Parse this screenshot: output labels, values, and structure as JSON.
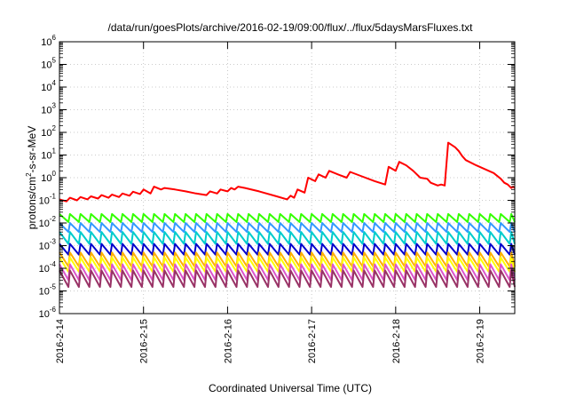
{
  "chart_data": {
    "type": "line",
    "title": "/data/run/goesPlots/archive/2016-02-19/09:00/flux/../flux/5daysMarsFluxes.txt",
    "xlabel": "Coordinated Universal Time (UTC)",
    "ylabel_base": "protons/cm",
    "ylabel_sup": "2",
    "ylabel_rest": "-s-sr-MeV",
    "x_scale": "date",
    "x_range": [
      "2016-02-14T00:00",
      "2016-02-19T10:00"
    ],
    "x_ticks": [
      "2016-2-14",
      "2016-2-15",
      "2016-2-16",
      "2016-2-17",
      "2016-2-18",
      "2016-2-19"
    ],
    "y_scale": "log",
    "y_range": [
      1e-06,
      1000000.0
    ],
    "y_tick_exponents": [
      -6,
      -5,
      -4,
      -3,
      -2,
      -1,
      0,
      1,
      2,
      3,
      4,
      5,
      6
    ],
    "grid": true,
    "legend": "none",
    "sawtooth_period_hours": 3,
    "series": [
      {
        "color": "#ff0000",
        "points": [
          [
            "2016-02-14T00:00",
            0.11
          ],
          [
            "2016-02-14T02:00",
            0.09
          ],
          [
            "2016-02-14T03:00",
            0.13
          ],
          [
            "2016-02-14T05:00",
            0.1
          ],
          [
            "2016-02-14T06:00",
            0.14
          ],
          [
            "2016-02-14T08:00",
            0.11
          ],
          [
            "2016-02-14T09:00",
            0.15
          ],
          [
            "2016-02-14T11:00",
            0.12
          ],
          [
            "2016-02-14T12:00",
            0.17
          ],
          [
            "2016-02-14T14:00",
            0.13
          ],
          [
            "2016-02-14T15:00",
            0.18
          ],
          [
            "2016-02-14T17:00",
            0.14
          ],
          [
            "2016-02-14T18:00",
            0.2
          ],
          [
            "2016-02-14T20:00",
            0.16
          ],
          [
            "2016-02-14T21:00",
            0.24
          ],
          [
            "2016-02-14T23:00",
            0.19
          ],
          [
            "2016-02-15T00:00",
            0.3
          ],
          [
            "2016-02-15T02:00",
            0.2
          ],
          [
            "2016-02-15T03:00",
            0.4
          ],
          [
            "2016-02-15T05:00",
            0.3
          ],
          [
            "2016-02-15T06:00",
            0.35
          ],
          [
            "2016-02-15T09:00",
            0.3
          ],
          [
            "2016-02-15T12:00",
            0.25
          ],
          [
            "2016-02-15T15:00",
            0.2
          ],
          [
            "2016-02-15T18:00",
            0.17
          ],
          [
            "2016-02-15T19:00",
            0.25
          ],
          [
            "2016-02-15T21:00",
            0.2
          ],
          [
            "2016-02-15T22:00",
            0.3
          ],
          [
            "2016-02-16T00:00",
            0.25
          ],
          [
            "2016-02-16T01:00",
            0.35
          ],
          [
            "2016-02-16T02:00",
            0.3
          ],
          [
            "2016-02-16T03:00",
            0.4
          ],
          [
            "2016-02-16T05:00",
            0.35
          ],
          [
            "2016-02-16T09:00",
            0.25
          ],
          [
            "2016-02-16T14:00",
            0.15
          ],
          [
            "2016-02-16T17:00",
            0.11
          ],
          [
            "2016-02-16T18:00",
            0.16
          ],
          [
            "2016-02-16T19:00",
            0.13
          ],
          [
            "2016-02-16T20:00",
            0.3
          ],
          [
            "2016-02-16T22:00",
            0.22
          ],
          [
            "2016-02-16T23:00",
            1.0
          ],
          [
            "2016-02-17T01:00",
            0.7
          ],
          [
            "2016-02-17T02:00",
            1.4
          ],
          [
            "2016-02-17T04:00",
            1.0
          ],
          [
            "2016-02-17T05:00",
            2.0
          ],
          [
            "2016-02-17T08:00",
            1.3
          ],
          [
            "2016-02-17T10:00",
            1.0
          ],
          [
            "2016-02-17T11:00",
            1.8
          ],
          [
            "2016-02-17T14:00",
            1.2
          ],
          [
            "2016-02-17T18:00",
            0.7
          ],
          [
            "2016-02-17T21:00",
            0.5
          ],
          [
            "2016-02-17T22:00",
            3.0
          ],
          [
            "2016-02-18T00:00",
            2.0
          ],
          [
            "2016-02-18T01:00",
            5.0
          ],
          [
            "2016-02-18T03:00",
            3.5
          ],
          [
            "2016-02-18T05:00",
            2.0
          ],
          [
            "2016-02-18T07:00",
            1.0
          ],
          [
            "2016-02-18T09:00",
            0.9
          ],
          [
            "2016-02-18T10:00",
            0.6
          ],
          [
            "2016-02-18T12:00",
            0.45
          ],
          [
            "2016-02-18T13:00",
            0.5
          ],
          [
            "2016-02-18T14:00",
            0.45
          ],
          [
            "2016-02-18T15:00",
            35.0
          ],
          [
            "2016-02-18T17:00",
            22.0
          ],
          [
            "2016-02-18T18:00",
            15.0
          ],
          [
            "2016-02-18T19:00",
            9.0
          ],
          [
            "2016-02-18T20:00",
            6.0
          ],
          [
            "2016-02-18T23:00",
            3.5
          ],
          [
            "2016-02-19T02:00",
            2.2
          ],
          [
            "2016-02-19T04:00",
            1.6
          ],
          [
            "2016-02-19T06:00",
            0.9
          ],
          [
            "2016-02-19T07:00",
            0.6
          ],
          [
            "2016-02-19T08:00",
            0.5
          ],
          [
            "2016-02-19T09:00",
            0.35
          ],
          [
            "2016-02-19T09:30",
            0.4
          ],
          [
            "2016-02-19T10:00",
            0.35
          ]
        ]
      },
      {
        "color": "#33ff00",
        "high": 0.025,
        "low": 0.011
      },
      {
        "color": "#3399ff",
        "high": 0.01,
        "low": 0.004
      },
      {
        "color": "#00cccc",
        "high": 0.004,
        "low": 0.0012
      },
      {
        "color": "#0000cc",
        "high": 0.0012,
        "low": 0.0004
      },
      {
        "color": "#ffb000",
        "high": 0.0005,
        "low": 0.00012
      },
      {
        "color": "#ffff00",
        "high": 0.0003,
        "low": 7e-05
      },
      {
        "color": "#dd55cc",
        "high": 0.00015,
        "low": 3e-05
      },
      {
        "color": "#993366",
        "high": 8e-05,
        "low": 1.5e-05
      }
    ]
  }
}
